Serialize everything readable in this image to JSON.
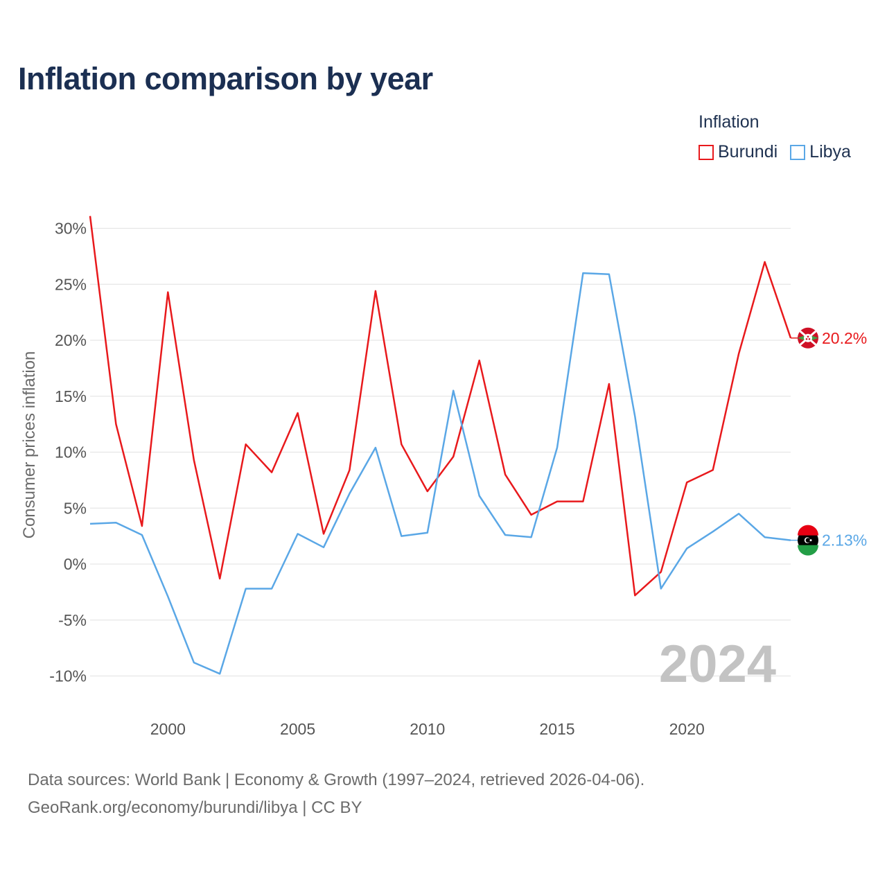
{
  "title": "Inflation comparison by year",
  "legend": {
    "title": "Inflation",
    "items": [
      {
        "label": "Burundi",
        "color": "#e8191c"
      },
      {
        "label": "Libya",
        "color": "#5aa7e6"
      }
    ]
  },
  "source": {
    "line1": "Data sources: World Bank | Economy & Growth (1997–2024, retrieved 2026-04-06).",
    "line2": "GeoRank.org/economy/burundi/libya | CC BY"
  },
  "chart_data": {
    "type": "line",
    "title": "Inflation comparison by year",
    "xlabel": "",
    "ylabel": "Consumer prices inflation",
    "year_watermark": "2024",
    "xlim": [
      1997,
      2024
    ],
    "ylim": [
      -12,
      33
    ],
    "x_ticks": [
      2000,
      2005,
      2010,
      2015,
      2020
    ],
    "y_ticks": [
      -10,
      -5,
      0,
      5,
      10,
      15,
      20,
      25,
      30
    ],
    "y_tick_labels": [
      "-10%",
      "-5%",
      "0%",
      "5%",
      "10%",
      "15%",
      "20%",
      "25%",
      "30%"
    ],
    "x": [
      1997,
      1998,
      1999,
      2000,
      2001,
      2002,
      2003,
      2004,
      2005,
      2006,
      2007,
      2008,
      2009,
      2010,
      2011,
      2012,
      2013,
      2014,
      2015,
      2016,
      2017,
      2018,
      2019,
      2020,
      2021,
      2022,
      2023,
      2024
    ],
    "series": [
      {
        "name": "Burundi",
        "color": "#e8191c",
        "end_label": "20.2%",
        "values": [
          31.1,
          12.5,
          3.4,
          24.3,
          9.3,
          -1.3,
          10.7,
          8.2,
          13.5,
          2.7,
          8.4,
          24.4,
          10.7,
          6.5,
          9.6,
          18.2,
          8.0,
          4.4,
          5.6,
          5.6,
          16.1,
          -2.8,
          -0.7,
          7.3,
          8.4,
          18.8,
          27.0,
          20.2
        ]
      },
      {
        "name": "Libya",
        "color": "#5aa7e6",
        "end_label": "2.13%",
        "values": [
          3.6,
          3.7,
          2.6,
          -2.9,
          -8.8,
          -9.8,
          -2.2,
          -2.2,
          2.7,
          1.5,
          6.3,
          10.4,
          2.5,
          2.8,
          15.5,
          6.1,
          2.6,
          2.4,
          10.4,
          26.0,
          25.9,
          13.2,
          -2.2,
          1.4,
          2.9,
          4.5,
          2.4,
          2.13
        ]
      }
    ]
  }
}
